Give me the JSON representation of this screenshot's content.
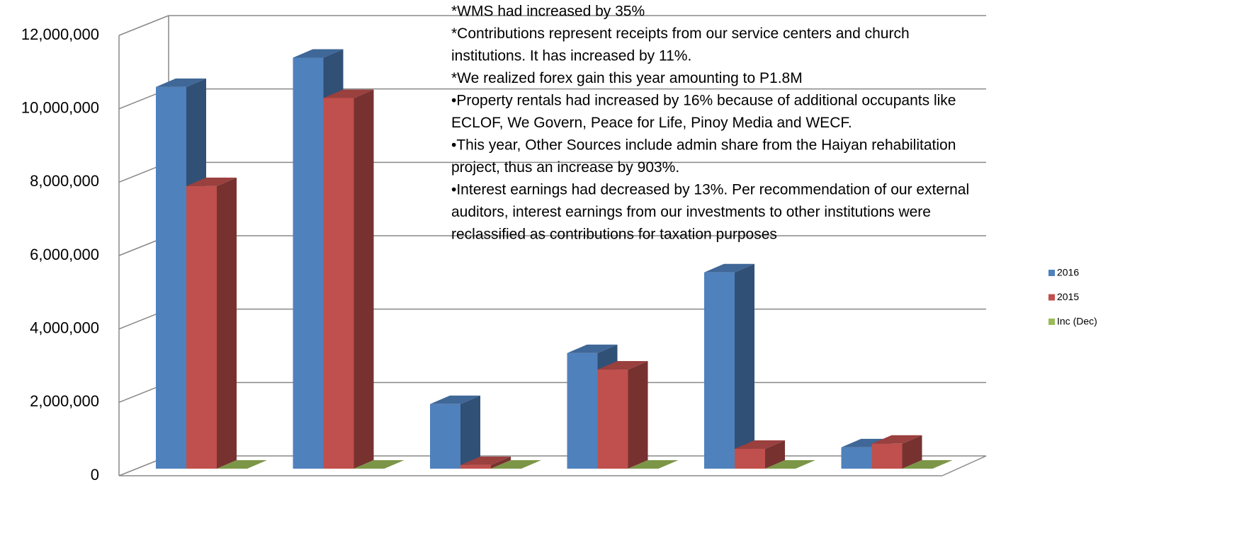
{
  "chart_data": {
    "type": "bar3d",
    "annotations": [
      "*WMS had increased by 35%",
      "*Contributions  represent receipts from our service centers and church",
      "institutions. It has increased by 11%.",
      "*We realized forex gain this year amounting to P1.8M",
      "•Property rentals had increased by 16%  because of additional occupants  like",
      "ECLOF, We Govern, Peace for Life, Pinoy Media and WECF.",
      "•This year, Other Sources include admin share from the Haiyan rehabilitation",
      "project, thus an increase by 903%.",
      "•Interest earnings had decreased by 13%.  Per recommendation of our external",
      "auditors, interest earnings from our investments to other institutions were",
      "reclassified as contributions for taxation purposes"
    ],
    "categories": [
      null,
      null,
      null,
      null,
      null,
      null
    ],
    "series": [
      {
        "name": "2016",
        "color": "#4f81bd",
        "values": [
          10400000,
          11200000,
          1760000,
          3150000,
          5350000,
          580000
        ]
      },
      {
        "name": "2015",
        "color": "#c0504d",
        "values": [
          7700000,
          10100000,
          100000,
          2700000,
          540000,
          680000
        ]
      },
      {
        "name": "Inc (Dec)",
        "color": "#9bbb59",
        "values": [
          0,
          0,
          0,
          0,
          0,
          0
        ]
      }
    ],
    "ylim": [
      0,
      12000000
    ],
    "yticks": [
      0,
      {
        "value": 2000000,
        "label": "2,000,000"
      },
      {
        "value": 4000000,
        "label": "4,000,000"
      },
      {
        "value": 6000000,
        "label": "6,000,000"
      },
      {
        "value": 8000000,
        "label": "8,000,000"
      },
      {
        "value": 10000000,
        "label": "10,000,000"
      },
      {
        "value": 12000000,
        "label": "12,000,000"
      }
    ],
    "grid": true,
    "legend": "right"
  }
}
